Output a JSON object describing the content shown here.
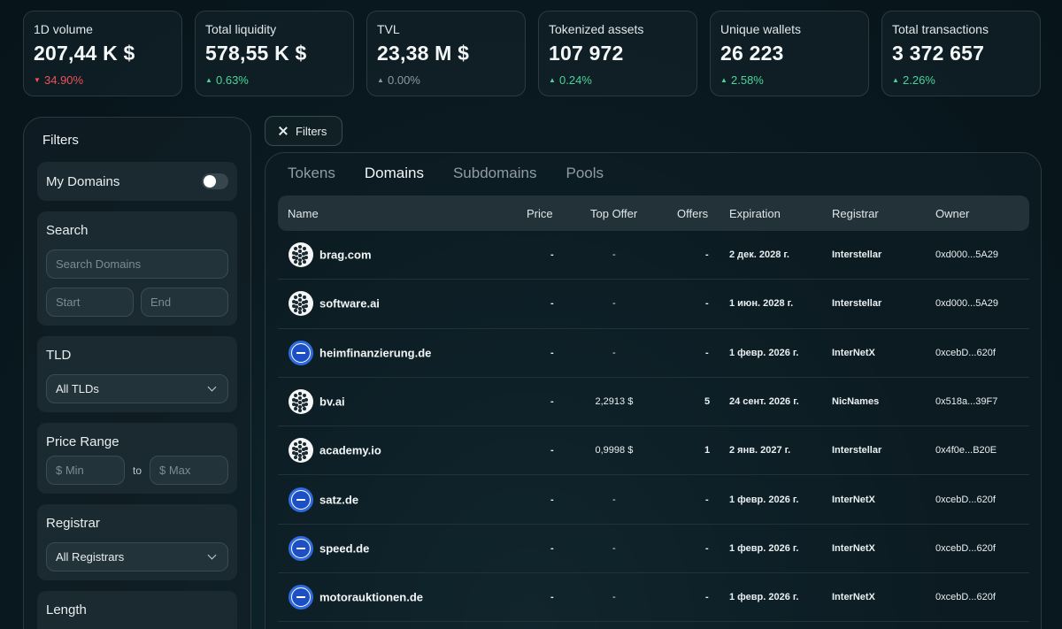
{
  "stats": [
    {
      "label": "1D volume",
      "value": "207,44 K $",
      "change": "34.90%",
      "dir": "down"
    },
    {
      "label": "Total liquidity",
      "value": "578,55 K $",
      "change": "0.63%",
      "dir": "up"
    },
    {
      "label": "TVL",
      "value": "23,38 M $",
      "change": "0.00%",
      "dir": "flat"
    },
    {
      "label": "Tokenized assets",
      "value": "107 972",
      "change": "0.24%",
      "dir": "up"
    },
    {
      "label": "Unique wallets",
      "value": "26 223",
      "change": "2.58%",
      "dir": "up"
    },
    {
      "label": "Total transactions",
      "value": "3 372 657",
      "change": "2.26%",
      "dir": "up"
    }
  ],
  "sidebar": {
    "title": "Filters",
    "my_domains": "My Domains",
    "search": {
      "label": "Search",
      "placeholder": "Search Domains",
      "start": "Start",
      "end": "End"
    },
    "tld": {
      "label": "TLD",
      "selected": "All TLDs"
    },
    "price_range": {
      "label": "Price Range",
      "min": "$ Min",
      "to": "to",
      "max": "$ Max"
    },
    "registrar": {
      "label": "Registrar",
      "selected": "All Registrars"
    },
    "length": {
      "label": "Length"
    }
  },
  "filters_button": "Filters",
  "tabs": [
    "Tokens",
    "Domains",
    "Subdomains",
    "Pools"
  ],
  "active_tab": "Domains",
  "columns": [
    "Name",
    "Price",
    "Top Offer",
    "Offers",
    "Expiration",
    "Registrar",
    "Owner"
  ],
  "rows": [
    {
      "logo": "dots-logo-icon",
      "name": "brag.com",
      "price": "-",
      "top_offer": "-",
      "offers": "-",
      "expiration": "2 дек. 2028 г.",
      "registrar": "Interstellar",
      "owner": "0xd000...5A29"
    },
    {
      "logo": "dots-logo-icon",
      "name": "software.ai",
      "price": "-",
      "top_offer": "-",
      "offers": "-",
      "expiration": "1 июн. 2028 г.",
      "registrar": "Interstellar",
      "owner": "0xd000...5A29"
    },
    {
      "logo": "minus-logo-icon",
      "name": "heimfinanzierung.de",
      "price": "-",
      "top_offer": "-",
      "offers": "-",
      "expiration": "1 февр. 2026 г.",
      "registrar": "InterNetX",
      "owner": "0xcebD...620f"
    },
    {
      "logo": "dots-logo-icon",
      "name": "bv.ai",
      "price": "-",
      "top_offer": "2,2913 $",
      "offers": "5",
      "expiration": "24 сент. 2026 г.",
      "registrar": "NicNames",
      "owner": "0x518a...39F7"
    },
    {
      "logo": "dots-logo-icon",
      "name": "academy.io",
      "price": "-",
      "top_offer": "0,9998 $",
      "offers": "1",
      "expiration": "2 янв. 2027 г.",
      "registrar": "Interstellar",
      "owner": "0x4f0e...B20E"
    },
    {
      "logo": "minus-logo-icon",
      "name": "satz.de",
      "price": "-",
      "top_offer": "-",
      "offers": "-",
      "expiration": "1 февр. 2026 г.",
      "registrar": "InterNetX",
      "owner": "0xcebD...620f"
    },
    {
      "logo": "minus-logo-icon",
      "name": "speed.de",
      "price": "-",
      "top_offer": "-",
      "offers": "-",
      "expiration": "1 февр. 2026 г.",
      "registrar": "InterNetX",
      "owner": "0xcebD...620f"
    },
    {
      "logo": "minus-logo-icon",
      "name": "motorauktionen.de",
      "price": "-",
      "top_offer": "-",
      "offers": "-",
      "expiration": "1 февр. 2026 г.",
      "registrar": "InterNetX",
      "owner": "0xcebD...620f"
    }
  ],
  "colors": {
    "up": "#4ad49a",
    "down": "#f0505a",
    "flat": "#8d9aa0",
    "brand_blue": "#1d4fc4"
  }
}
